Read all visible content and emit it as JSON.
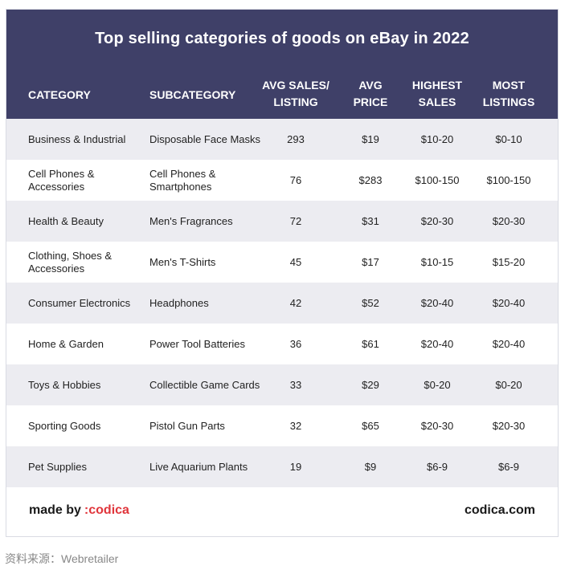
{
  "title": "Top selling categories of goods on eBay in 2022",
  "columns": [
    "CATEGORY",
    "SUBCATEGORY",
    "AVG SALES/ LISTING",
    "AVG PRICE",
    "HIGHEST SALES",
    "MOST LISTINGS"
  ],
  "rows": [
    [
      "Business & Industrial",
      "Disposable Face Masks",
      "293",
      "$19",
      "$10-20",
      "$0-10"
    ],
    [
      "Cell Phones & Accessories",
      "Cell Phones & Smartphones",
      "76",
      "$283",
      "$100-150",
      "$100-150"
    ],
    [
      "Health & Beauty",
      "Men's Fragrances",
      "72",
      "$31",
      "$20-30",
      "$20-30"
    ],
    [
      "Clothing, Shoes & Accessories",
      "Men's T-Shirts",
      "45",
      "$17",
      "$10-15",
      "$15-20"
    ],
    [
      "Consumer Electronics",
      "Headphones",
      "42",
      "$52",
      "$20-40",
      "$20-40"
    ],
    [
      "Home & Garden",
      "Power Tool Batteries",
      "36",
      "$61",
      "$20-40",
      "$20-40"
    ],
    [
      "Toys & Hobbies",
      "Collectible Game Cards",
      "33",
      "$29",
      "$0-20",
      "$0-20"
    ],
    [
      "Sporting Goods",
      "Pistol Gun Parts",
      "32",
      "$65",
      "$20-30",
      "$20-30"
    ],
    [
      "Pet Supplies",
      "Live Aquarium Plants",
      "19",
      "$9",
      "$6-9",
      "$6-9"
    ]
  ],
  "footer": {
    "made_by": "made by",
    "brand": ":codica",
    "site": "codica.com"
  },
  "source": "资料来源：Webretailer",
  "colors": {
    "header_bg": "#3f4068",
    "row_alt_bg": "#ececf1",
    "brand": "#e0353b"
  }
}
